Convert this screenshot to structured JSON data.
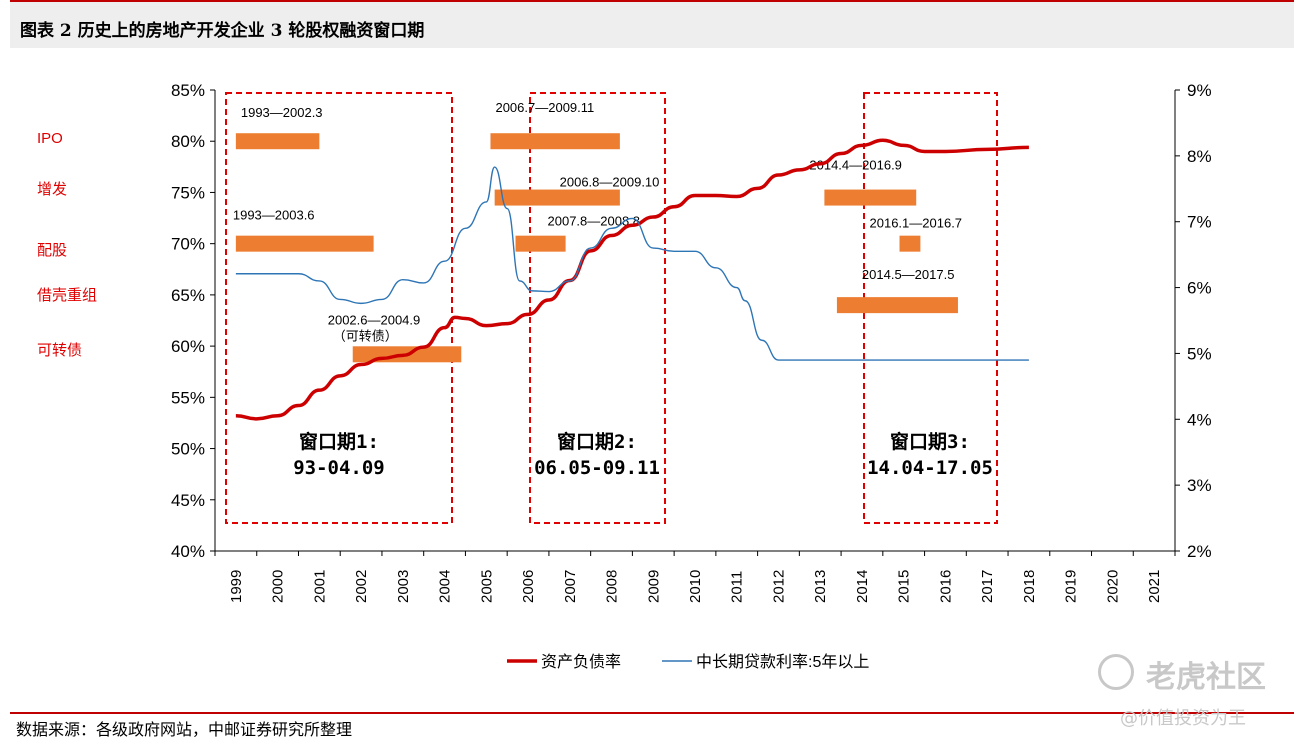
{
  "header": {
    "title": "图表 2  历史上的房地产开发企业 3 轮股权融资窗口期"
  },
  "footer": {
    "source": "数据来源：各级政府网站，中邮证券研究所整理"
  },
  "watermark": {
    "brand": "老虎社区",
    "handle": "@价值投资为王"
  },
  "chart_data": {
    "type": "line",
    "categories": [
      "1999",
      "2000",
      "2001",
      "2002",
      "2003",
      "2004",
      "2005",
      "2006",
      "2007",
      "2008",
      "2009",
      "2010",
      "2011",
      "2012",
      "2013",
      "2014",
      "2015",
      "2016",
      "2017",
      "2018",
      "2019",
      "2020",
      "2021"
    ],
    "left_axis": {
      "min": 40,
      "max": 85,
      "ticks": [
        "40%",
        "45%",
        "50%",
        "55%",
        "60%",
        "65%",
        "70%",
        "75%",
        "80%",
        "85%"
      ]
    },
    "right_axis": {
      "min": 2,
      "max": 9,
      "ticks": [
        "2%",
        "3%",
        "4%",
        "5%",
        "6%",
        "7%",
        "8%",
        "9%"
      ]
    },
    "series": [
      {
        "name": "资产负债率",
        "axis": "left",
        "color": "#cc0000",
        "points": [
          [
            0,
            53.2
          ],
          [
            0.5,
            52.9
          ],
          [
            1,
            53.2
          ],
          [
            1.5,
            54.2
          ],
          [
            2,
            55.7
          ],
          [
            2.5,
            57.1
          ],
          [
            3,
            58.2
          ],
          [
            3.5,
            58.8
          ],
          [
            4,
            59.1
          ],
          [
            4.5,
            59.9
          ],
          [
            5,
            61.8
          ],
          [
            5.25,
            62.8
          ],
          [
            5.5,
            62.7
          ],
          [
            6,
            62.0
          ],
          [
            6.5,
            62.2
          ],
          [
            7,
            63.1
          ],
          [
            7.5,
            64.5
          ],
          [
            8,
            66.4
          ],
          [
            8.5,
            69.3
          ],
          [
            9,
            70.8
          ],
          [
            9.5,
            71.8
          ],
          [
            10,
            72.6
          ],
          [
            10.5,
            73.6
          ],
          [
            11,
            74.7
          ],
          [
            11.5,
            74.7
          ],
          [
            12,
            74.6
          ],
          [
            12.5,
            75.4
          ],
          [
            13,
            76.7
          ],
          [
            13.5,
            77.2
          ],
          [
            14,
            77.8
          ],
          [
            14.5,
            78.8
          ],
          [
            15,
            79.6
          ],
          [
            15.5,
            80.1
          ],
          [
            16,
            79.6
          ],
          [
            16.5,
            79.0
          ],
          [
            17,
            79.0
          ],
          [
            18,
            79.2
          ],
          [
            19,
            79.4
          ]
        ]
      },
      {
        "name": "中长期贷款利率:5年以上",
        "axis": "right",
        "color": "#2e75b6",
        "points": [
          [
            0,
            6.21
          ],
          [
            1,
            6.21
          ],
          [
            1.5,
            6.21
          ],
          [
            2,
            6.1
          ],
          [
            2.5,
            5.82
          ],
          [
            3,
            5.76
          ],
          [
            3.5,
            5.82
          ],
          [
            4,
            6.12
          ],
          [
            4.5,
            6.07
          ],
          [
            5,
            6.4
          ],
          [
            5.5,
            6.9
          ],
          [
            6,
            7.3
          ],
          [
            6.2,
            7.83
          ],
          [
            6.5,
            7.2
          ],
          [
            6.8,
            6.1
          ],
          [
            7.1,
            5.95
          ],
          [
            7.5,
            5.94
          ],
          [
            8,
            6.1
          ],
          [
            8.5,
            6.6
          ],
          [
            9,
            6.9
          ],
          [
            9.5,
            7.05
          ],
          [
            10,
            6.6
          ],
          [
            10.5,
            6.55
          ],
          [
            11,
            6.55
          ],
          [
            11.5,
            6.3
          ],
          [
            12,
            6.0
          ],
          [
            12.2,
            5.8
          ],
          [
            12.6,
            5.2
          ],
          [
            13,
            4.9
          ],
          [
            13.5,
            4.9
          ],
          [
            14,
            4.9
          ],
          [
            15,
            4.9
          ],
          [
            16,
            4.9
          ],
          [
            17,
            4.9
          ],
          [
            18,
            4.9
          ],
          [
            19,
            4.9
          ]
        ]
      }
    ],
    "side_labels": [
      "IPO",
      "增发",
      "配股",
      "借壳重组",
      "可转债"
    ],
    "windows": [
      {
        "title": "窗口期1:",
        "subtitle": "93-04.09"
      },
      {
        "title": "窗口期2:",
        "subtitle": "06.05-09.11"
      },
      {
        "title": "窗口期3:",
        "subtitle": "14.04-17.05"
      }
    ],
    "bar_color": "#ed7d31",
    "bars": [
      {
        "label": "1993—2002.3",
        "start": 0,
        "end": 2.0,
        "row": 80
      },
      {
        "label": "1993—2003.6",
        "start": 0,
        "end": 3.3,
        "row": 70
      },
      {
        "label": "2002.6—2004.9",
        "sublabel": "（可转债）",
        "start": 2.8,
        "end": 5.4,
        "row": 59.2
      },
      {
        "label": "2006.7—2009.11",
        "start": 6.1,
        "end": 9.2,
        "row": 80
      },
      {
        "label": "2006.8—2009.10",
        "start": 6.2,
        "end": 9.2,
        "row": 74.5
      },
      {
        "label": "2007.8—2008.8",
        "start": 6.7,
        "end": 7.9,
        "row": 70
      },
      {
        "label": "2014.4—2016.9",
        "start": 14.1,
        "end": 16.3,
        "row": 74.5
      },
      {
        "label": "2016.1—2016.7",
        "start": 15.9,
        "end": 16.4,
        "row": 70
      },
      {
        "label": "2014.5—2017.5",
        "start": 14.4,
        "end": 17.3,
        "row": 64
      }
    ],
    "grid": false,
    "legend_position": "bottom"
  }
}
